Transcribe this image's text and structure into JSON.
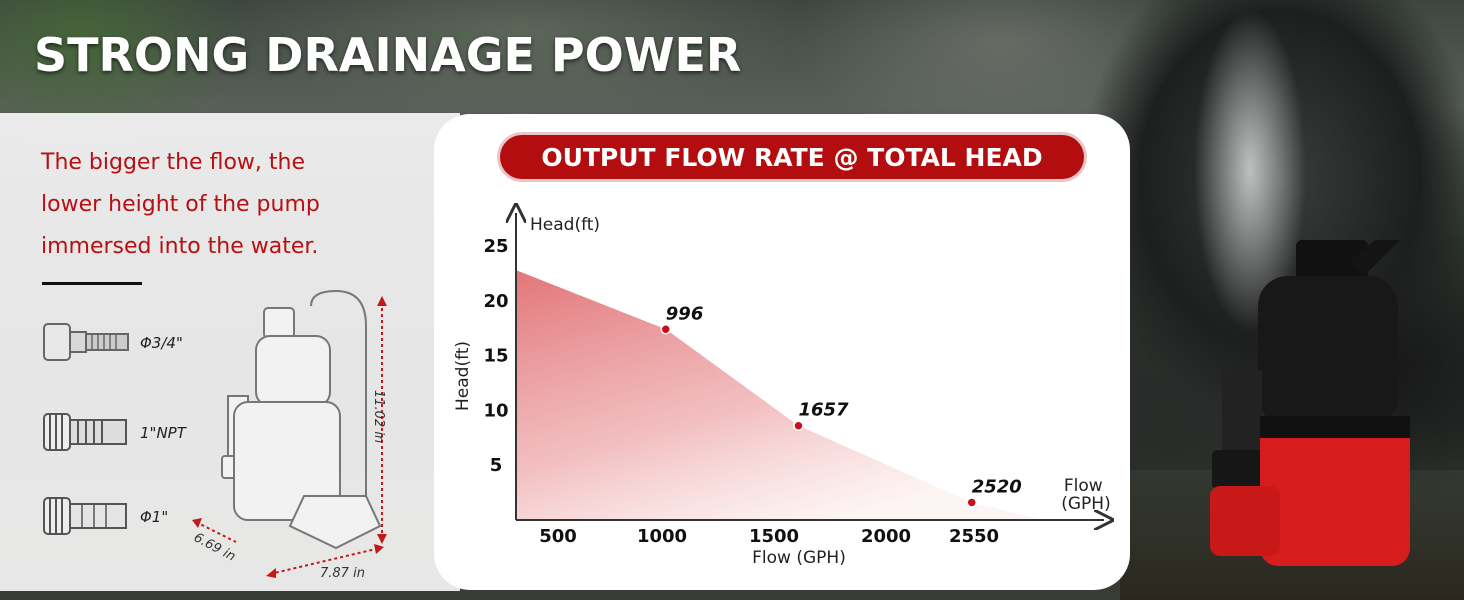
{
  "headline": "STRONG DRAINAGE POWER",
  "description": {
    "lines": [
      "The bigger the flow, the",
      "lower height of the pump",
      "immersed into the water."
    ]
  },
  "fittings": [
    {
      "label": "Φ3/4\"",
      "icon": "hose-adapter-3-4-icon"
    },
    {
      "label": "1\"NPT",
      "icon": "hose-adapter-1npt-icon"
    },
    {
      "label": "Φ1\"",
      "icon": "hose-adapter-1-icon"
    }
  ],
  "dimensions": {
    "height": "11.02 in",
    "depth": "6.69 in",
    "width": "7.87 in"
  },
  "colors": {
    "accent_red": "#b40d10",
    "fill_red": "#e07a7c",
    "point_red": "#c8101a"
  },
  "chart_data": {
    "type": "area",
    "title": "OUTPUT FLOW RATE @ TOTAL HEAD",
    "xlabel": "Flow (GPH)",
    "xlabel_arrow": "Flow\n(GPH)",
    "ylabel": "Head(ft)",
    "ylabel_arrow": "Head(ft)",
    "x_ticks": [
      "500",
      "1000",
      "1500",
      "2000",
      "2550"
    ],
    "y_ticks": [
      "5",
      "10",
      "15",
      "20",
      "25"
    ],
    "ylim": [
      0,
      26
    ],
    "points": [
      {
        "x": 250,
        "y": 22.8,
        "label": ""
      },
      {
        "x": 996,
        "y": 17.4,
        "label": "996"
      },
      {
        "x": 1657,
        "y": 8.6,
        "label": "1657"
      },
      {
        "x": 2520,
        "y": 1.6,
        "label": "2520"
      },
      {
        "x": 2870,
        "y": 0,
        "label": ""
      }
    ],
    "grid": false
  }
}
